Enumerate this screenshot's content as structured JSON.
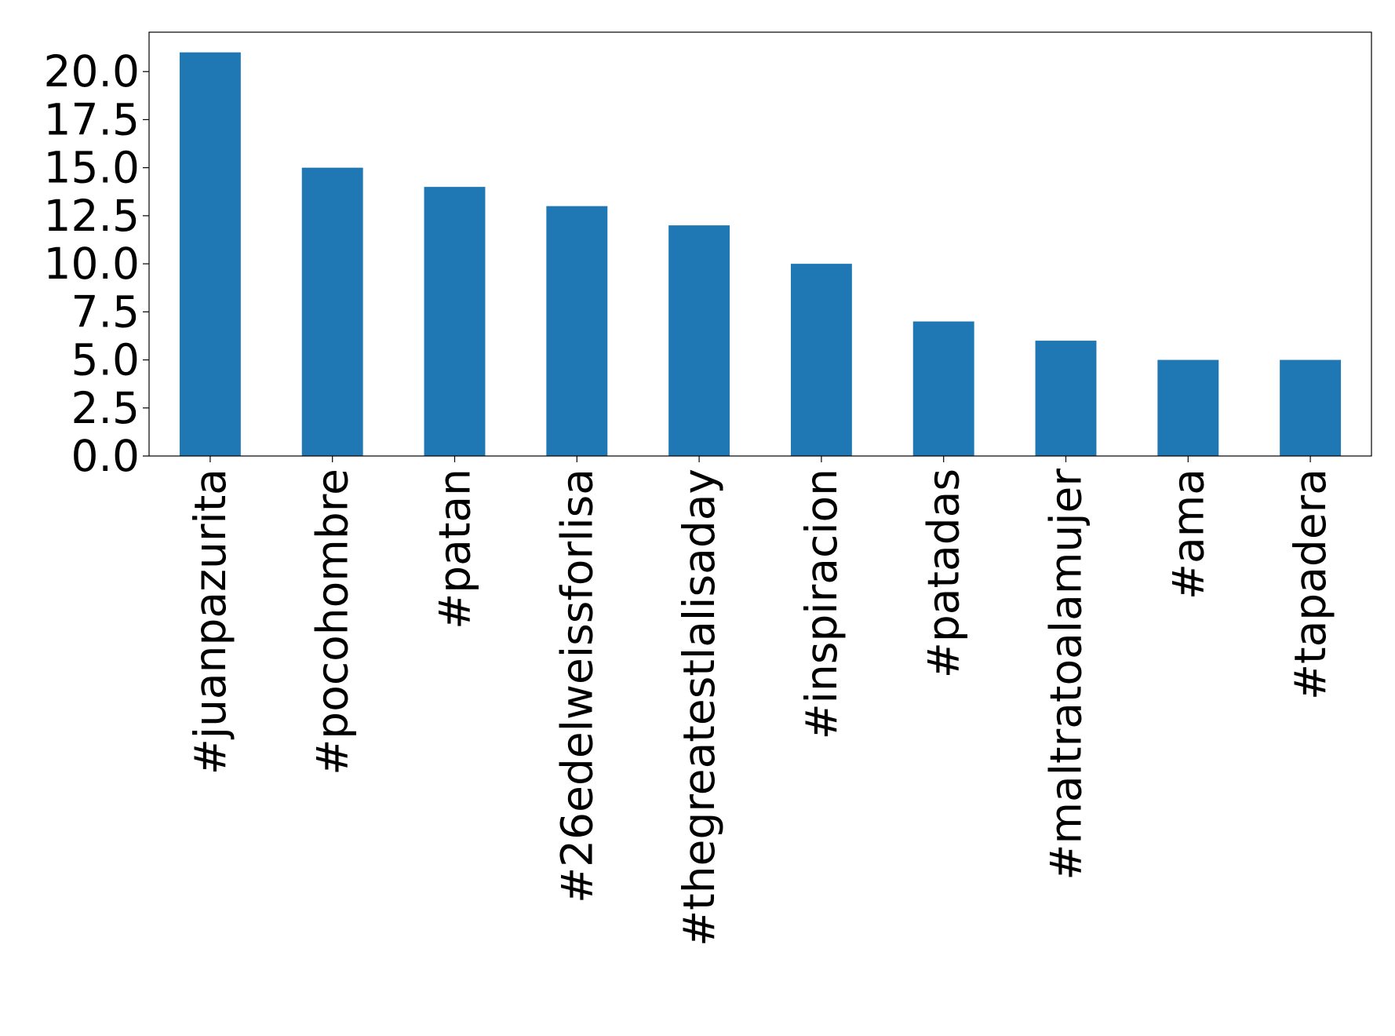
{
  "chart_data": {
    "type": "bar",
    "categories": [
      "#juanpazurita",
      "#pocohombre",
      "#patan",
      "#26edelweissforlisa",
      "#thegreatestlalisaday",
      "#inspiracion",
      "#patadas",
      "#maltratoalamujer",
      "#ama",
      "#tapadera"
    ],
    "values": [
      21,
      15,
      14,
      13,
      12,
      10,
      7,
      6,
      5,
      5
    ],
    "color": "#1f77b4",
    "ylim": [
      0,
      22.05
    ],
    "yticks": [
      {
        "value": 0,
        "label": "0.0"
      },
      {
        "value": 2.5,
        "label": "2.5"
      },
      {
        "value": 5,
        "label": "5.0"
      },
      {
        "value": 7.5,
        "label": "7.5"
      },
      {
        "value": 10,
        "label": "10.0"
      },
      {
        "value": 12.5,
        "label": "12.5"
      },
      {
        "value": 15,
        "label": "15.0"
      },
      {
        "value": 17.5,
        "label": "17.5"
      },
      {
        "value": 20,
        "label": "20.0"
      }
    ],
    "grid": false
  }
}
